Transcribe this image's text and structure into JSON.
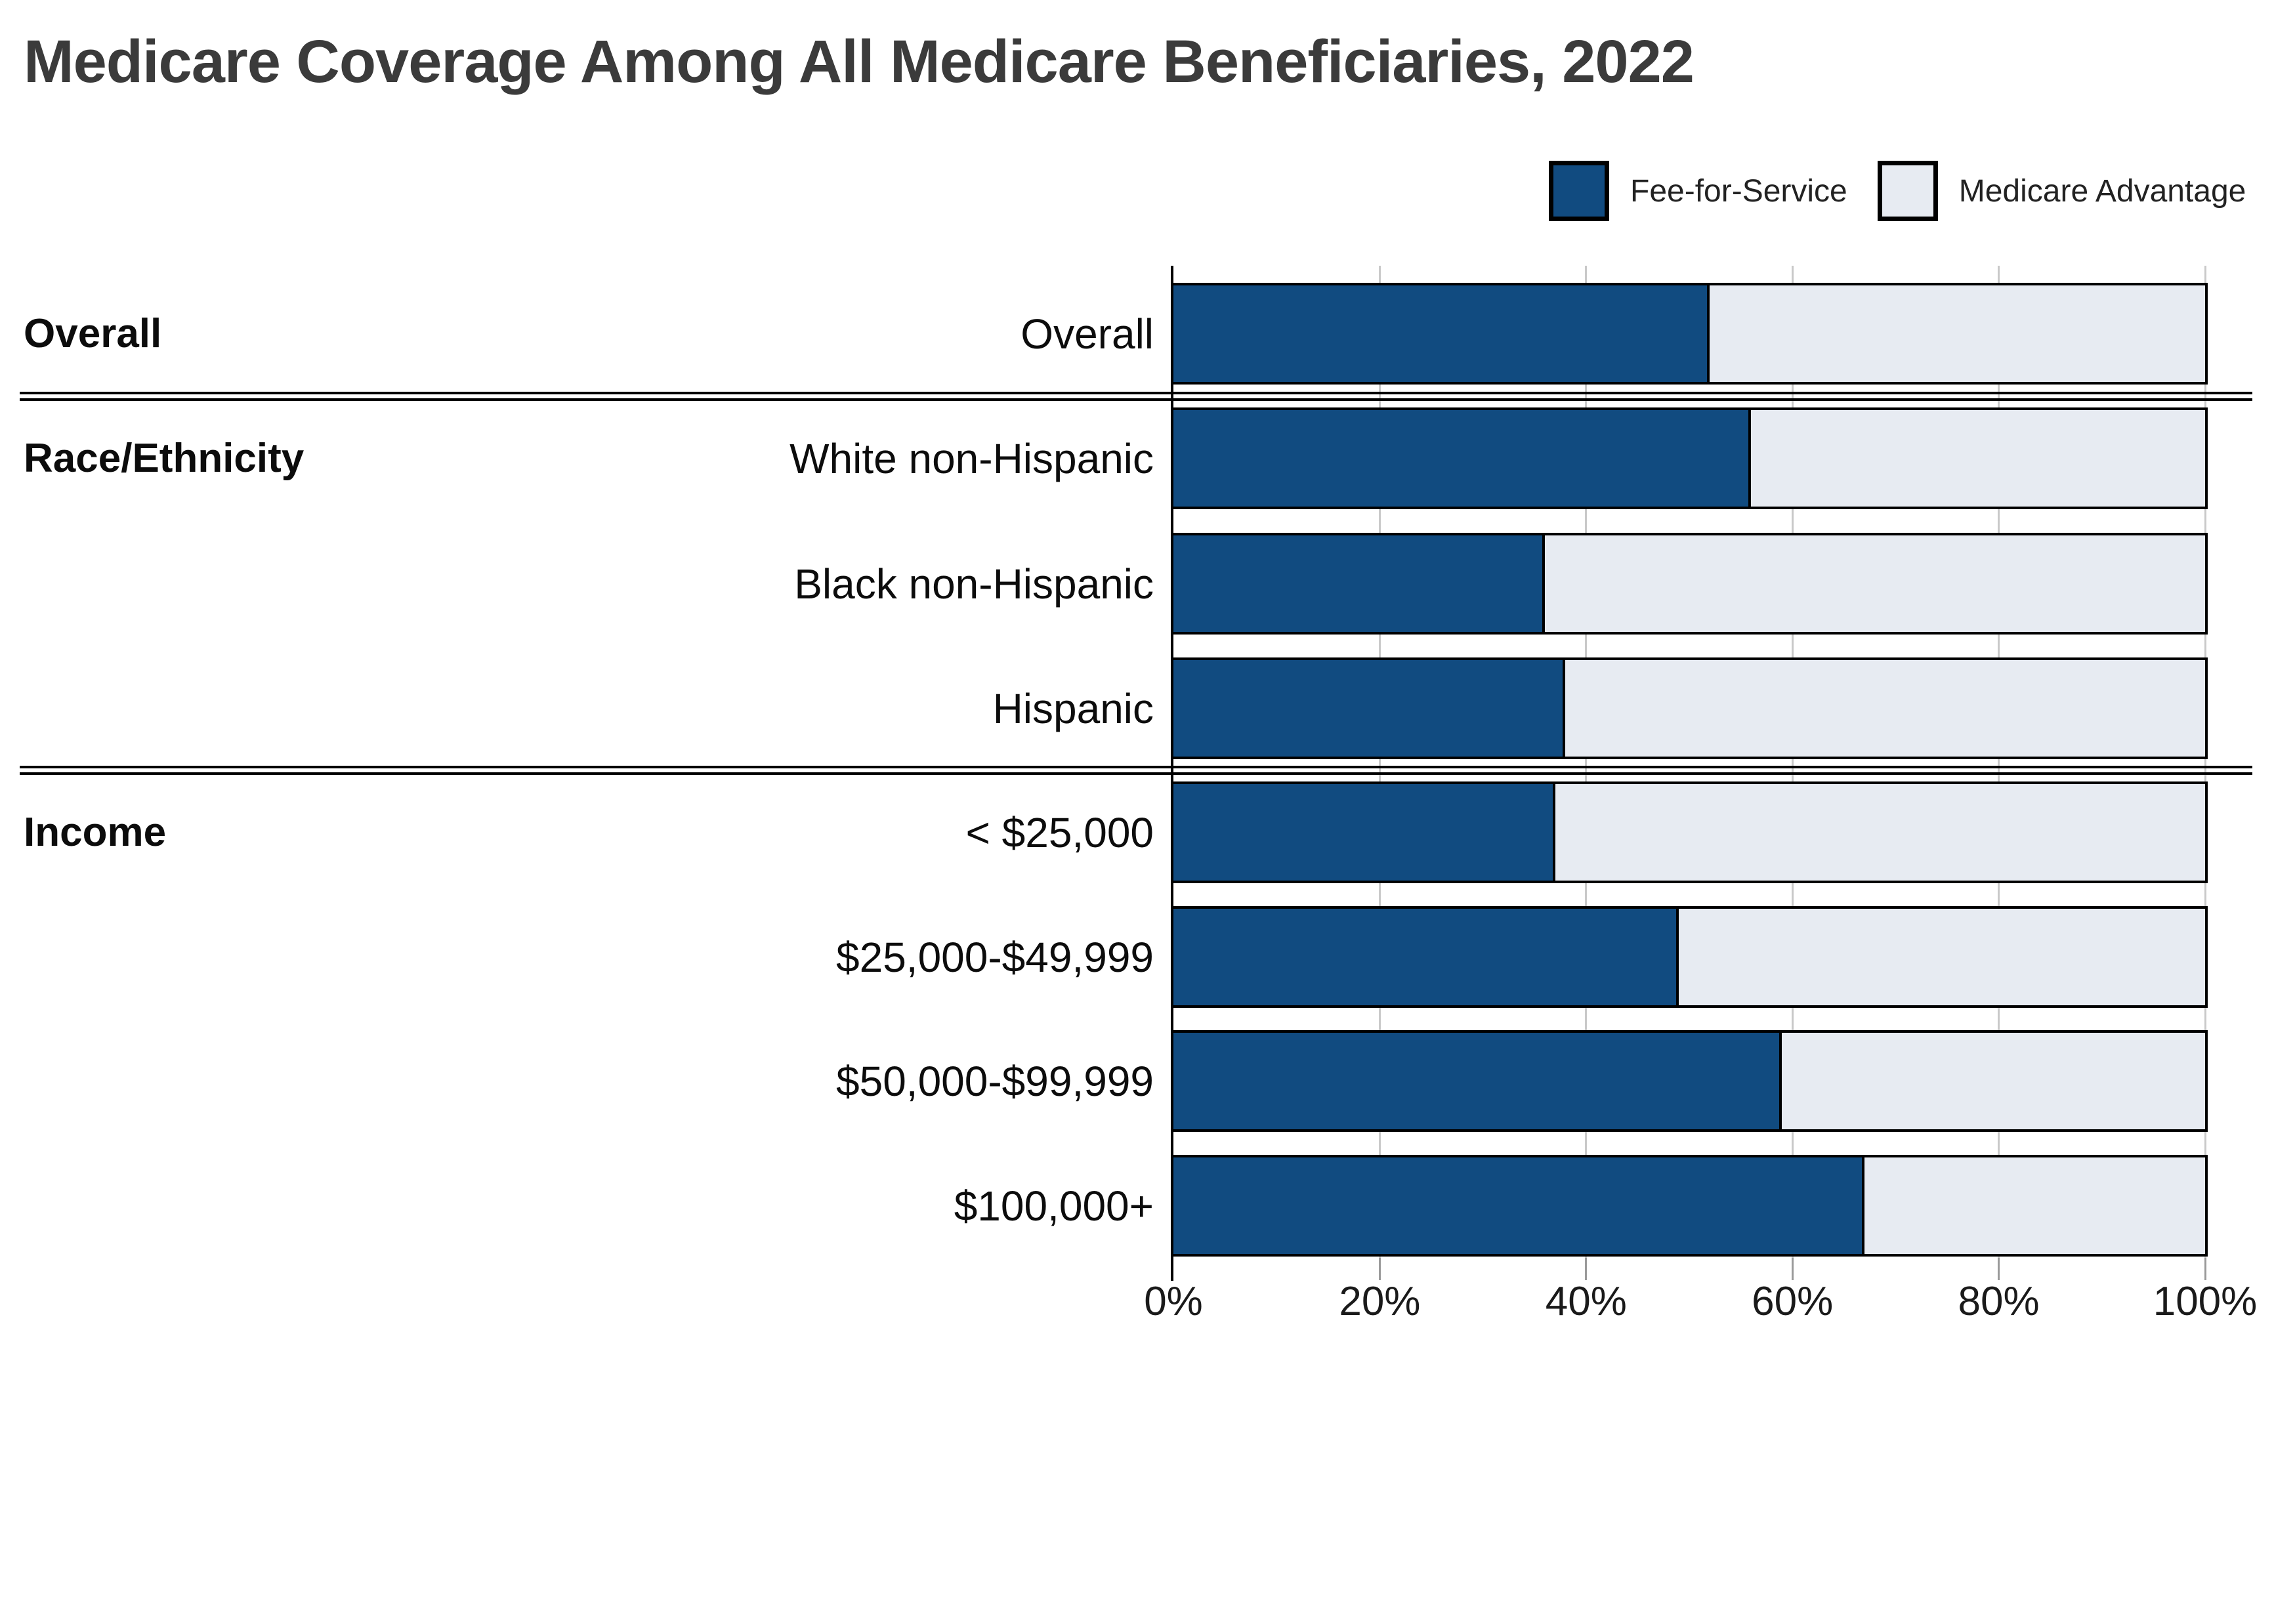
{
  "title": "Medicare Coverage Among All Medicare Beneficiaries, 2022",
  "legend": {
    "items": [
      {
        "label": "Fee-for-Service",
        "color": "#114b80"
      },
      {
        "label": "Medicare Advantage",
        "color": "#e7ebf2"
      }
    ]
  },
  "x_axis": {
    "tick_labels": [
      "0%",
      "20%",
      "40%",
      "60%",
      "80%",
      "100%"
    ],
    "min": 0,
    "max": 100,
    "unit": "%"
  },
  "colors": {
    "bar_border": "#000000",
    "gridline": "#c9c9c9",
    "axis_line": "#000000",
    "tick": "#9a9a9a",
    "title_text": "#3b3b3b",
    "label_text": "#0c0c0c"
  },
  "chart_data": {
    "type": "bar",
    "orientation": "horizontal",
    "stacked": true,
    "stack_total": 100,
    "title": "Medicare Coverage Among All Medicare Beneficiaries, 2022",
    "categories": [
      "Overall",
      "White non-Hispanic",
      "Black non-Hispanic",
      "Hispanic",
      "< $25,000",
      "$25,000-$49,999",
      "$50,000-$99,999",
      "$100,000+"
    ],
    "sections": [
      {
        "label": "Overall",
        "start_index": 0,
        "end_index": 0
      },
      {
        "label": "Race/Ethnicity",
        "start_index": 1,
        "end_index": 3
      },
      {
        "label": "Income",
        "start_index": 4,
        "end_index": 7
      }
    ],
    "series": [
      {
        "name": "Fee-for-Service",
        "color": "#114b80",
        "values": [
          52,
          56,
          36,
          38,
          37,
          49,
          59,
          67
        ]
      },
      {
        "name": "Medicare Advantage",
        "color": "#e7ebf2",
        "values": [
          48,
          44,
          64,
          62,
          63,
          51,
          41,
          33
        ]
      }
    ],
    "xlim": [
      0,
      100
    ],
    "x_ticks_pct": [
      0,
      20,
      40,
      60,
      80,
      100
    ],
    "grid": true,
    "legend_position": "top-right",
    "xlabel": "",
    "ylabel": ""
  }
}
